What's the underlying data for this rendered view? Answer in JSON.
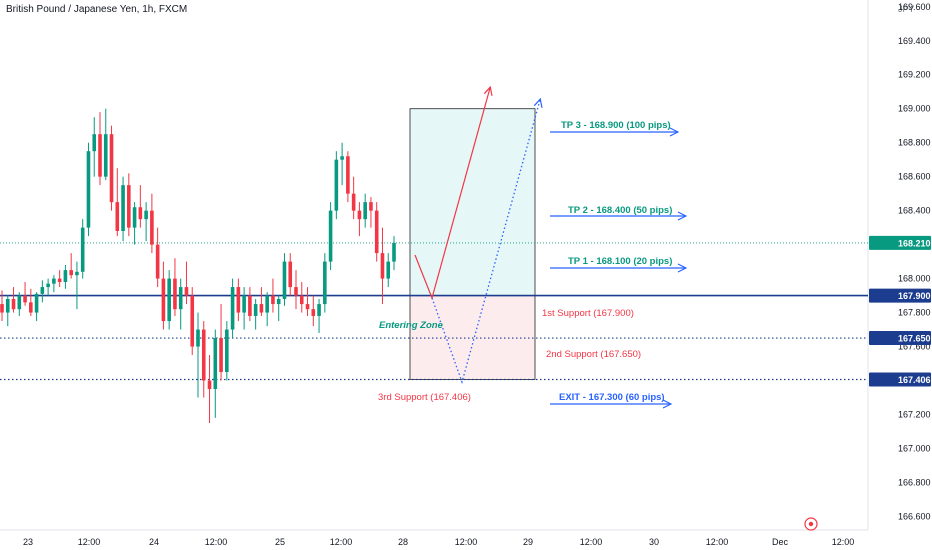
{
  "header": {
    "title": "British Pound / Japanese Yen, 1h, FXCM",
    "unit": "JPY"
  },
  "colors": {
    "up": "#089981",
    "down": "#f23645",
    "level": "#1c3d8f",
    "arrow": "#2962ff",
    "tp_text": "#089981",
    "support_text": "#f23645",
    "exit_text": "#2962ff",
    "profit_zone": "#e6f7f7",
    "loss_zone": "#fdecee"
  },
  "chart_data": {
    "type": "candlestick",
    "title": "British Pound / Japanese Yen, 1h, FXCM",
    "ylabel": "JPY",
    "ylim": [
      166.52,
      169.64
    ],
    "y_ticks": [
      "169.600",
      "169.400",
      "169.200",
      "169.000",
      "168.800",
      "168.600",
      "168.400",
      "168.200",
      "168.000",
      "167.800",
      "167.600",
      "167.400",
      "167.200",
      "167.000",
      "166.800",
      "166.600"
    ],
    "y_tick_values": [
      169.6,
      169.4,
      169.2,
      169.0,
      168.8,
      168.6,
      168.4,
      168.2,
      168.0,
      167.8,
      167.6,
      167.4,
      167.2,
      167.0,
      166.8,
      166.6
    ],
    "x_ticks": [
      "23",
      "12:00",
      "24",
      "12:00",
      "25",
      "12:00",
      "28",
      "12:00",
      "29",
      "12:00",
      "30",
      "12:00",
      "Dec",
      "12:00"
    ],
    "last_price": "168.210",
    "last_price_value": 168.21,
    "levels": [
      {
        "value": 167.9,
        "label": "167.900",
        "style": "solid"
      },
      {
        "value": 167.65,
        "label": "167.650",
        "style": "dotted"
      },
      {
        "value": 167.406,
        "label": "167.406",
        "style": "dotted"
      }
    ],
    "annotations": {
      "tp3": "TP 3 - 168.900 (100 pips)",
      "tp2": "TP 2 - 168.400 (50 pips)",
      "tp1": "TP 1 - 168.100 (20 pips)",
      "support1": "1st Support (167.900)",
      "support2": "2nd Support (167.650)",
      "support3": "3rd Support (167.406)",
      "exit": "EXIT - 167.300 (60 pips)",
      "entry": "Entering Zone"
    },
    "candles": [
      [
        167.85,
        167.93,
        167.75,
        167.8
      ],
      [
        167.8,
        167.9,
        167.72,
        167.88
      ],
      [
        167.88,
        167.95,
        167.8,
        167.82
      ],
      [
        167.82,
        167.92,
        167.78,
        167.9
      ],
      [
        167.9,
        167.98,
        167.84,
        167.86
      ],
      [
        167.86,
        167.94,
        167.78,
        167.8
      ],
      [
        167.8,
        167.92,
        167.75,
        167.91
      ],
      [
        167.91,
        167.99,
        167.86,
        167.95
      ],
      [
        167.95,
        168.0,
        167.9,
        167.97
      ],
      [
        167.97,
        168.02,
        167.92,
        168.0
      ],
      [
        168.0,
        168.05,
        167.95,
        167.98
      ],
      [
        167.98,
        168.08,
        167.94,
        168.05
      ],
      [
        168.05,
        168.15,
        168.0,
        168.02
      ],
      [
        168.02,
        168.1,
        167.82,
        168.04
      ],
      [
        168.04,
        168.35,
        168.0,
        168.3
      ],
      [
        168.3,
        168.8,
        168.25,
        168.75
      ],
      [
        168.75,
        168.95,
        168.6,
        168.85
      ],
      [
        168.85,
        168.98,
        168.55,
        168.6
      ],
      [
        168.6,
        169.0,
        168.58,
        168.85
      ],
      [
        168.85,
        168.9,
        168.4,
        168.45
      ],
      [
        168.45,
        168.65,
        168.25,
        168.28
      ],
      [
        168.28,
        168.6,
        168.22,
        168.55
      ],
      [
        168.55,
        168.62,
        168.25,
        168.3
      ],
      [
        168.3,
        168.45,
        168.2,
        168.42
      ],
      [
        168.42,
        168.55,
        168.3,
        168.35
      ],
      [
        168.35,
        168.45,
        168.22,
        168.4
      ],
      [
        168.4,
        168.5,
        168.15,
        168.2
      ],
      [
        168.2,
        168.3,
        167.95,
        168.0
      ],
      [
        168.0,
        168.1,
        167.7,
        167.75
      ],
      [
        167.75,
        168.05,
        167.7,
        168.0
      ],
      [
        168.0,
        168.12,
        167.78,
        167.82
      ],
      [
        167.82,
        168.0,
        167.7,
        167.95
      ],
      [
        167.95,
        168.1,
        167.85,
        167.9
      ],
      [
        167.9,
        167.95,
        167.55,
        167.6
      ],
      [
        167.6,
        167.8,
        167.3,
        167.7
      ],
      [
        167.7,
        167.75,
        167.3,
        167.4
      ],
      [
        167.4,
        167.55,
        167.15,
        167.35
      ],
      [
        167.35,
        167.7,
        167.18,
        167.65
      ],
      [
        167.65,
        167.85,
        167.4,
        167.45
      ],
      [
        167.45,
        167.75,
        167.4,
        167.7
      ],
      [
        167.7,
        168.0,
        167.65,
        167.95
      ],
      [
        167.95,
        168.0,
        167.75,
        167.8
      ],
      [
        167.8,
        167.95,
        167.7,
        167.9
      ],
      [
        167.9,
        167.95,
        167.75,
        167.78
      ],
      [
        167.78,
        167.88,
        167.7,
        167.85
      ],
      [
        167.85,
        167.95,
        167.78,
        167.8
      ],
      [
        167.8,
        167.92,
        167.72,
        167.9
      ],
      [
        167.9,
        168.0,
        167.8,
        167.85
      ],
      [
        167.85,
        167.9,
        167.75,
        167.88
      ],
      [
        167.88,
        168.15,
        167.84,
        168.1
      ],
      [
        168.1,
        168.15,
        167.9,
        167.95
      ],
      [
        167.95,
        168.05,
        167.82,
        167.9
      ],
      [
        167.9,
        167.98,
        167.8,
        167.85
      ],
      [
        167.85,
        167.95,
        167.78,
        167.82
      ],
      [
        167.82,
        167.9,
        167.72,
        167.78
      ],
      [
        167.78,
        167.88,
        167.68,
        167.85
      ],
      [
        167.85,
        168.15,
        167.8,
        168.1
      ],
      [
        168.1,
        168.45,
        168.05,
        168.4
      ],
      [
        168.4,
        168.75,
        168.35,
        168.7
      ],
      [
        168.7,
        168.8,
        168.55,
        168.72
      ],
      [
        168.72,
        168.75,
        168.45,
        168.5
      ],
      [
        168.5,
        168.6,
        168.35,
        168.4
      ],
      [
        168.4,
        168.45,
        168.25,
        168.35
      ],
      [
        168.35,
        168.5,
        168.3,
        168.45
      ],
      [
        168.45,
        168.48,
        168.3,
        168.4
      ],
      [
        168.4,
        168.45,
        168.1,
        168.15
      ],
      [
        168.15,
        168.3,
        167.85,
        168.0
      ],
      [
        168.0,
        168.15,
        167.95,
        168.1
      ],
      [
        168.1,
        168.25,
        168.05,
        168.21
      ]
    ]
  }
}
